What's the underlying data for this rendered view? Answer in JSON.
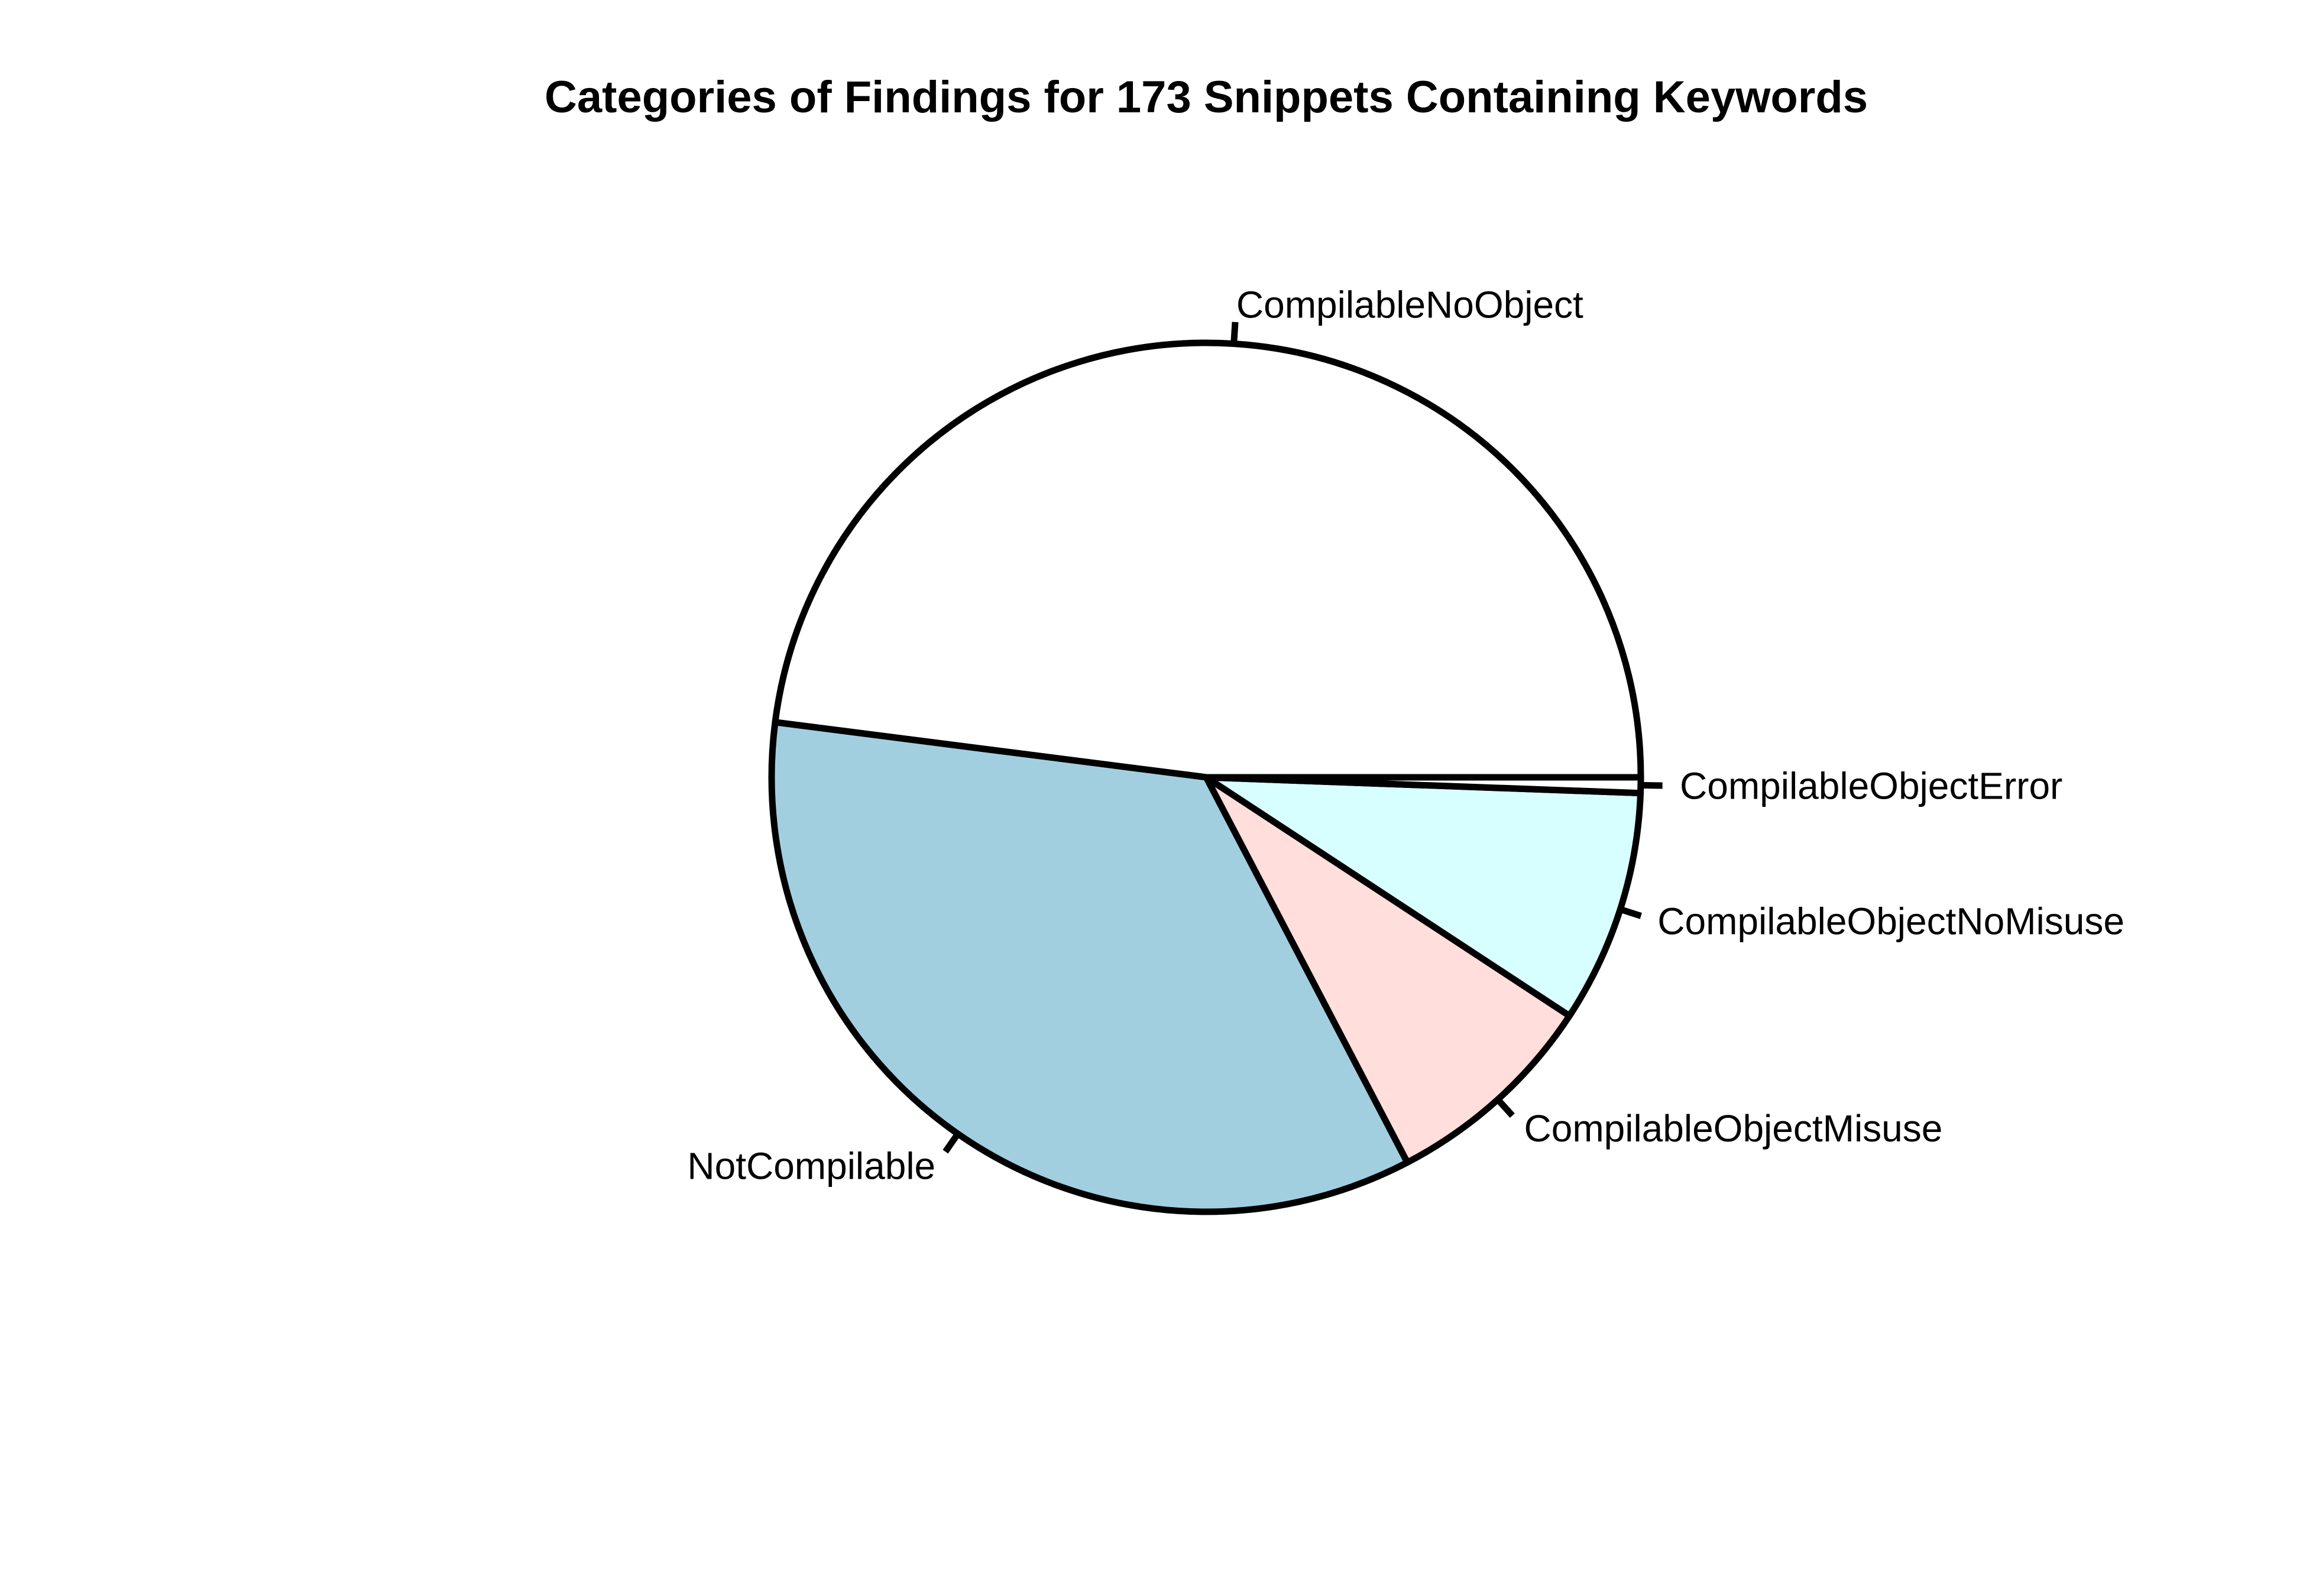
{
  "chart_data": {
    "type": "pie",
    "title": "Categories of Findings for 173 Snippets Containing Keywords",
    "start_angle_deg": 0,
    "direction": "counterclockwise",
    "slices": [
      {
        "label": "CompilableNoObject",
        "value": 83,
        "color": "#ffffff"
      },
      {
        "label": "NotCompilable",
        "value": 60,
        "color": "#a1cfe0"
      },
      {
        "label": "CompilableObjectMisuse",
        "value": 14,
        "color": "#ffdedc"
      },
      {
        "label": "CompilableObjectNoMisuse",
        "value": 15,
        "color": "#d8ffff"
      },
      {
        "label": "CompilableObjectError",
        "value": 1,
        "color": "#ffffff"
      }
    ]
  }
}
